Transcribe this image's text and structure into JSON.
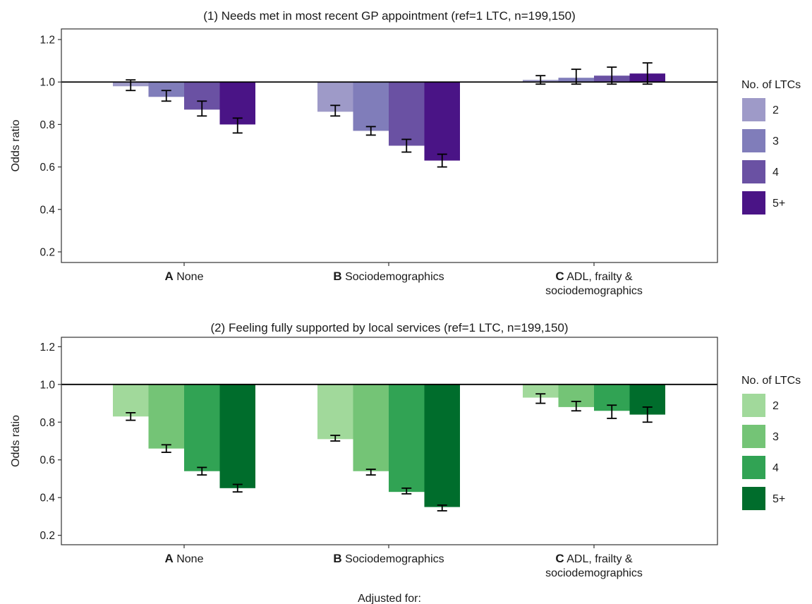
{
  "figure": {
    "caption_x": "Adjusted for:"
  },
  "chart_data": [
    {
      "type": "bar",
      "title": "(1) Needs met in most recent GP appointment (ref=1 LTC, n=199,150)",
      "ylabel": "Odds ratio",
      "ylim": [
        0.15,
        1.25
      ],
      "yticks": [
        "0.2",
        "0.4",
        "0.6",
        "0.8",
        "1.0",
        "1.2"
      ],
      "reference_line": 1.0,
      "bar_baseline": 1.0,
      "categories": [
        {
          "letter": "A",
          "label": "None",
          "label2": ""
        },
        {
          "letter": "B",
          "label": "Sociodemographics",
          "label2": ""
        },
        {
          "letter": "C",
          "label": "ADL, frailty &",
          "label2": "sociodemographics"
        }
      ],
      "legend": {
        "title": "No. of LTCs",
        "position": "right"
      },
      "grid": false,
      "series": [
        {
          "name": "2",
          "color": "#9e9ac8",
          "values": [
            0.98,
            0.86,
            1.01
          ],
          "ci_low": [
            0.96,
            0.84,
            0.99
          ],
          "ci_high": [
            1.01,
            0.89,
            1.03
          ]
        },
        {
          "name": "3",
          "color": "#807dba",
          "values": [
            0.93,
            0.77,
            1.02
          ],
          "ci_low": [
            0.91,
            0.75,
            0.99
          ],
          "ci_high": [
            0.96,
            0.79,
            1.06
          ]
        },
        {
          "name": "4",
          "color": "#6a51a3",
          "values": [
            0.87,
            0.7,
            1.03
          ],
          "ci_low": [
            0.84,
            0.67,
            0.99
          ],
          "ci_high": [
            0.91,
            0.73,
            1.07
          ]
        },
        {
          "name": "5+",
          "color": "#4a1486",
          "values": [
            0.8,
            0.63,
            1.04
          ],
          "ci_low": [
            0.76,
            0.6,
            0.99
          ],
          "ci_high": [
            0.83,
            0.66,
            1.09
          ]
        }
      ]
    },
    {
      "type": "bar",
      "title": "(2) Feeling fully supported by local services (ref=1 LTC, n=199,150)",
      "ylabel": "Odds ratio",
      "ylim": [
        0.15,
        1.25
      ],
      "yticks": [
        "0.2",
        "0.4",
        "0.6",
        "0.8",
        "1.0",
        "1.2"
      ],
      "reference_line": 1.0,
      "bar_baseline": 1.0,
      "categories": [
        {
          "letter": "A",
          "label": "None",
          "label2": ""
        },
        {
          "letter": "B",
          "label": "Sociodemographics",
          "label2": ""
        },
        {
          "letter": "C",
          "label": "ADL, frailty &",
          "label2": "sociodemographics"
        }
      ],
      "legend": {
        "title": "No. of LTCs",
        "position": "right"
      },
      "grid": false,
      "series": [
        {
          "name": "2",
          "color": "#a1d99b",
          "values": [
            0.83,
            0.71,
            0.93
          ],
          "ci_low": [
            0.81,
            0.7,
            0.9
          ],
          "ci_high": [
            0.85,
            0.73,
            0.95
          ]
        },
        {
          "name": "3",
          "color": "#74c476",
          "values": [
            0.66,
            0.54,
            0.88
          ],
          "ci_low": [
            0.64,
            0.52,
            0.86
          ],
          "ci_high": [
            0.68,
            0.55,
            0.91
          ]
        },
        {
          "name": "4",
          "color": "#31a354",
          "values": [
            0.54,
            0.43,
            0.86
          ],
          "ci_low": [
            0.52,
            0.42,
            0.82
          ],
          "ci_high": [
            0.56,
            0.45,
            0.89
          ]
        },
        {
          "name": "5+",
          "color": "#006d2c",
          "values": [
            0.45,
            0.35,
            0.84
          ],
          "ci_low": [
            0.43,
            0.33,
            0.8
          ],
          "ci_high": [
            0.47,
            0.36,
            0.88
          ]
        }
      ]
    }
  ]
}
